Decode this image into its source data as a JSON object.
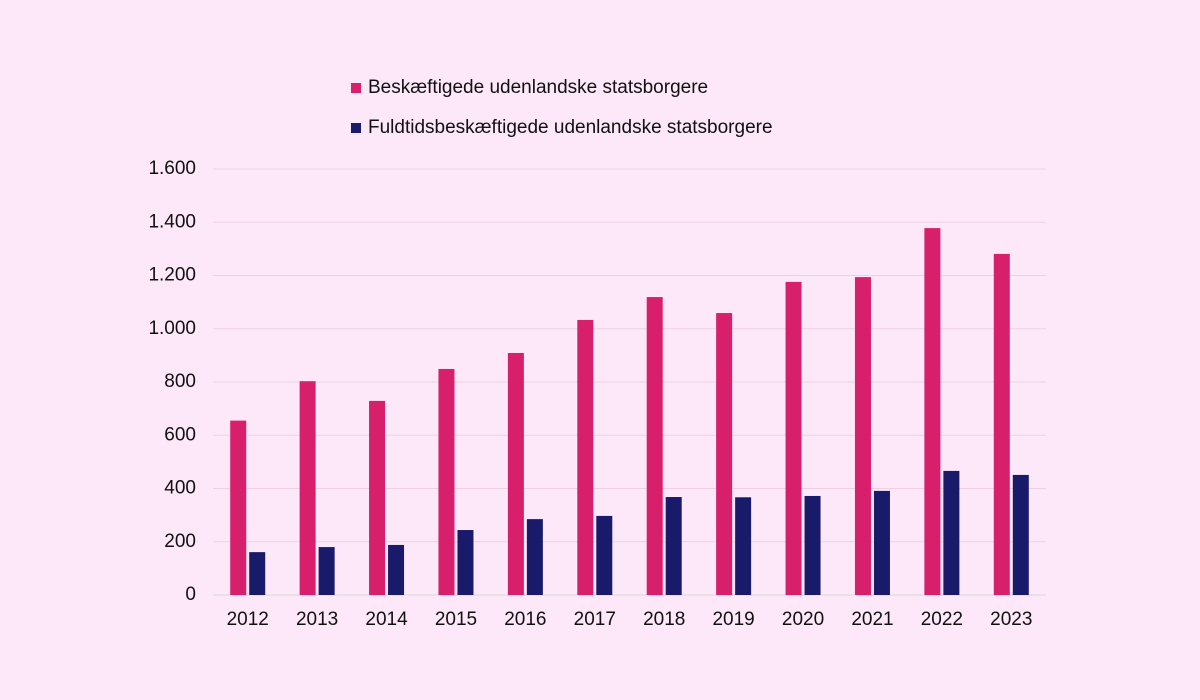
{
  "chart_data": {
    "type": "bar",
    "categories": [
      "2012",
      "2013",
      "2014",
      "2015",
      "2016",
      "2017",
      "2018",
      "2019",
      "2020",
      "2021",
      "2022",
      "2023"
    ],
    "series": [
      {
        "name": "Beskæftigede udenlandske statsborgere",
        "color": "#d81f6c",
        "values": [
          655,
          803,
          729,
          849,
          909,
          1033,
          1119,
          1059,
          1176,
          1194,
          1378,
          1281
        ]
      },
      {
        "name": "Fuldtidsbeskæftigede udenlandske statsborgere",
        "color": "#1a1a6b",
        "values": [
          161,
          180,
          188,
          244,
          285,
          297,
          368,
          367,
          372,
          391,
          466,
          451
        ]
      }
    ],
    "ylim": [
      0,
      1600
    ],
    "yticks": [
      0,
      200,
      400,
      600,
      800,
      {
        "value": 1000,
        "label": "1.000"
      },
      {
        "value": 1200,
        "label": "1.200"
      },
      {
        "value": 1400,
        "label": "1.400"
      },
      {
        "value": 1600,
        "label": "1.600"
      }
    ],
    "grid": true
  }
}
